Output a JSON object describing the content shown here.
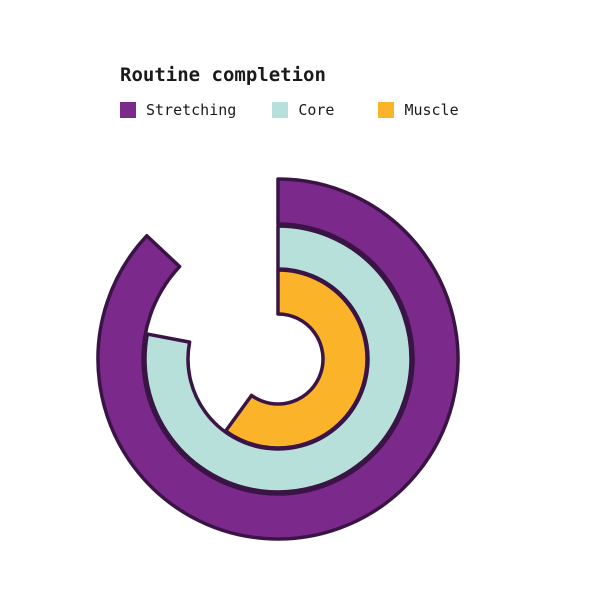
{
  "chart_data": {
    "type": "radial-bar",
    "title": "Routine completion",
    "series": [
      {
        "name": "Stretching",
        "value": 87,
        "color": "#7b2a8c"
      },
      {
        "name": "Core",
        "value": 78,
        "color": "#b8e0db"
      },
      {
        "name": "Muscle",
        "value": 60,
        "color": "#fbb429"
      }
    ],
    "max": 100,
    "outline_color": "#3a1445",
    "legend_position": "top-left",
    "grid": false
  }
}
